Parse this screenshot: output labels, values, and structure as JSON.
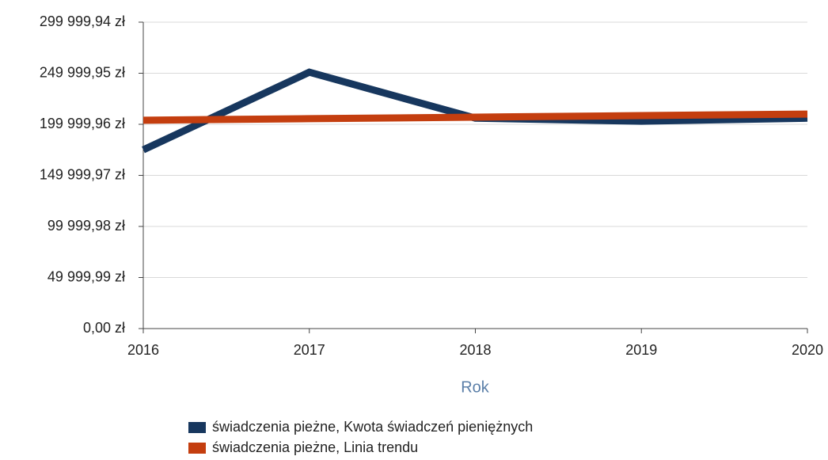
{
  "chart_data": {
    "type": "line",
    "x_label": "Rok",
    "x": [
      2016,
      2017,
      2018,
      2019,
      2020
    ],
    "xlim": [
      2016,
      2020
    ],
    "xticks": [
      2016,
      2017,
      2018,
      2019,
      2020
    ],
    "ylim": [
      0,
      299999.94
    ],
    "yticks": [
      {
        "value": 0,
        "label": "0,00 zł"
      },
      {
        "value": 49999.99,
        "label": "49 999,99 zł"
      },
      {
        "value": 99999.98,
        "label": "99 999,98 zł"
      },
      {
        "value": 149999.97,
        "label": "149 999,97 zł"
      },
      {
        "value": 199999.96,
        "label": "199 999,96 zł"
      },
      {
        "value": 249999.95,
        "label": "249 999,95 zł"
      },
      {
        "value": 299999.94,
        "label": "299 999,94 zł"
      }
    ],
    "grid": true,
    "legend": "bottom",
    "series": [
      {
        "name": "świadczenia pieżne, Kwota świadczeń pieniężnych",
        "color": "#17375e",
        "values": [
          175000,
          251000,
          206000,
          203000,
          206000
        ]
      },
      {
        "name": "świadczenia pieżne, Linia trendu",
        "color": "#c43e0f",
        "values": [
          204000,
          205500,
          207000,
          208500,
          210000
        ]
      }
    ]
  }
}
